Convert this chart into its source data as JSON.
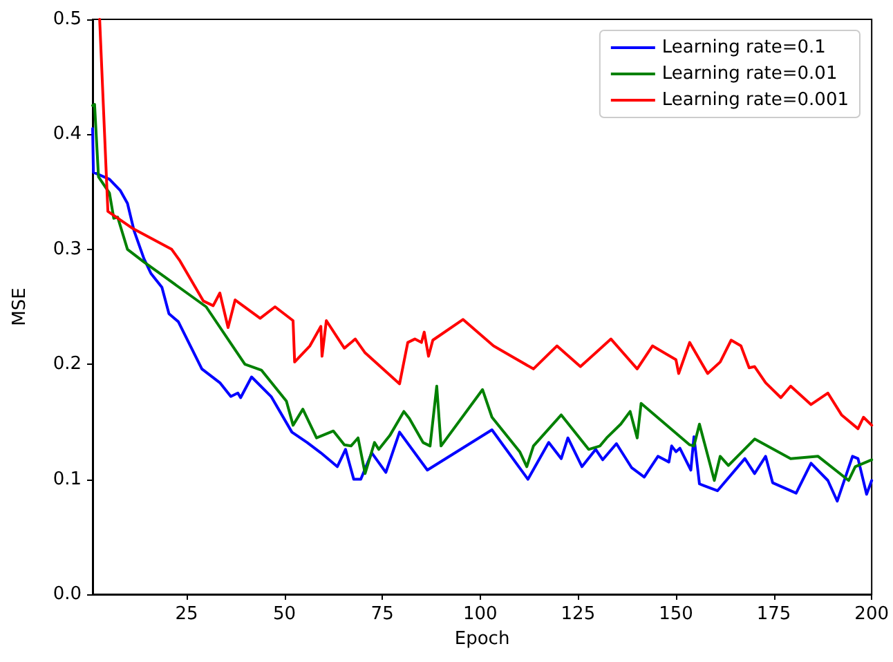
{
  "chart_data": {
    "type": "line",
    "xlabel": "Epoch",
    "ylabel": "MSE",
    "xlim": [
      1,
      200
    ],
    "xticks": [
      25,
      50,
      75,
      100,
      125,
      150,
      175,
      200
    ],
    "ylim": [
      0,
      0.5
    ],
    "yticks": [
      {
        "value": 0,
        "label": "0.0"
      },
      0.1,
      0.2,
      0.3,
      0.4,
      0.5
    ],
    "grid": false,
    "legend": "top right",
    "marker": "none",
    "line_style": "solid",
    "series": [
      {
        "name": "Learning rate=0.1",
        "color": "#0000ff",
        "x": [
          1,
          1.2,
          5.3,
          8.1,
          9.9,
          11.6,
          14.1,
          15.9,
          18.7,
          20.5,
          22.9,
          28.9,
          33.5,
          36.3,
          38.1,
          38.8,
          41.6,
          46.6,
          51.9,
          55.8,
          59.3,
          63.5,
          65.6,
          67.7,
          69.5,
          72.3,
          75.9,
          79.4,
          86.5,
          103,
          112.2,
          117.5,
          120.7,
          122.4,
          126,
          129.5,
          131.3,
          134.8,
          138.7,
          141.9,
          145.4,
          148.2,
          148.9,
          150,
          151,
          153.8,
          154.6,
          156,
          160.6,
          167.6,
          170.1,
          172.9,
          174.7,
          180.7,
          184.5,
          188.8,
          191.2,
          195.1,
          196.5,
          198.7,
          200
        ],
        "values": [
          0.405,
          0.367,
          0.361,
          0.351,
          0.34,
          0.316,
          0.292,
          0.279,
          0.267,
          0.244,
          0.237,
          0.196,
          0.184,
          0.172,
          0.175,
          0.171,
          0.189,
          0.172,
          0.141,
          0.132,
          0.123,
          0.111,
          0.126,
          0.1,
          0.1,
          0.123,
          0.106,
          0.141,
          0.108,
          0.143,
          0.1,
          0.132,
          0.118,
          0.136,
          0.111,
          0.126,
          0.117,
          0.131,
          0.11,
          0.102,
          0.12,
          0.115,
          0.129,
          0.124,
          0.127,
          0.108,
          0.137,
          0.096,
          0.09,
          0.118,
          0.105,
          0.12,
          0.097,
          0.088,
          0.114,
          0.099,
          0.081,
          0.12,
          0.118,
          0.087,
          0.099
        ]
      },
      {
        "name": "Learning rate=0.01",
        "color": "#008000",
        "x": [
          1,
          1.5,
          2.5,
          5.3,
          6.4,
          7.4,
          9.9,
          14.1,
          19.4,
          30,
          39.9,
          44.1,
          50.5,
          52.2,
          54.7,
          58.2,
          62.5,
          65.3,
          67,
          68.8,
          70.6,
          73,
          74.1,
          76.9,
          80.5,
          81.9,
          85.4,
          87.2,
          88.9,
          90,
          100.6,
          103,
          110.1,
          111.9,
          113.6,
          120.7,
          127.7,
          130.6,
          132.3,
          135.9,
          138.3,
          140.1,
          141.1,
          153.5,
          154.6,
          156,
          159.8,
          161.3,
          163.4,
          170.1,
          179.3,
          186.3,
          194.1,
          195.8,
          200
        ],
        "values": [
          0.425,
          0.426,
          0.363,
          0.349,
          0.327,
          0.328,
          0.3,
          0.289,
          0.276,
          0.25,
          0.2,
          0.195,
          0.168,
          0.147,
          0.161,
          0.136,
          0.142,
          0.13,
          0.129,
          0.136,
          0.105,
          0.132,
          0.126,
          0.138,
          0.159,
          0.153,
          0.132,
          0.129,
          0.181,
          0.129,
          0.178,
          0.154,
          0.124,
          0.111,
          0.129,
          0.156,
          0.126,
          0.129,
          0.136,
          0.148,
          0.159,
          0.136,
          0.166,
          0.13,
          0.129,
          0.148,
          0.099,
          0.12,
          0.112,
          0.135,
          0.118,
          0.12,
          0.099,
          0.111,
          0.117
        ]
      },
      {
        "name": "Learning rate=0.001",
        "color": "#ff0000",
        "x": [
          2.8,
          4.9,
          11.3,
          21.2,
          23.3,
          29.3,
          31.8,
          33.5,
          35.6,
          37.4,
          43.8,
          47.6,
          52.2,
          52.6,
          56.5,
          59.3,
          59.6,
          60.7,
          65.3,
          68.1,
          70.6,
          79.4,
          81.5,
          83.3,
          85,
          85.7,
          86.8,
          87.9,
          95.6,
          103.4,
          113.6,
          119.6,
          125.6,
          133.4,
          140.1,
          144,
          150,
          150.7,
          153.5,
          158.1,
          161.3,
          164.1,
          166.6,
          168.7,
          170.1,
          172.9,
          176.8,
          179.3,
          184.5,
          188.8,
          192.3,
          196.5,
          197.9,
          200
        ],
        "values": [
          0.5,
          0.333,
          0.318,
          0.3,
          0.29,
          0.255,
          0.251,
          0.262,
          0.232,
          0.256,
          0.24,
          0.25,
          0.238,
          0.202,
          0.216,
          0.233,
          0.207,
          0.238,
          0.214,
          0.222,
          0.21,
          0.183,
          0.219,
          0.222,
          0.219,
          0.228,
          0.207,
          0.221,
          0.239,
          0.216,
          0.196,
          0.216,
          0.198,
          0.222,
          0.196,
          0.216,
          0.204,
          0.192,
          0.219,
          0.192,
          0.202,
          0.221,
          0.216,
          0.197,
          0.198,
          0.184,
          0.171,
          0.181,
          0.165,
          0.175,
          0.156,
          0.144,
          0.154,
          0.147
        ]
      }
    ]
  }
}
